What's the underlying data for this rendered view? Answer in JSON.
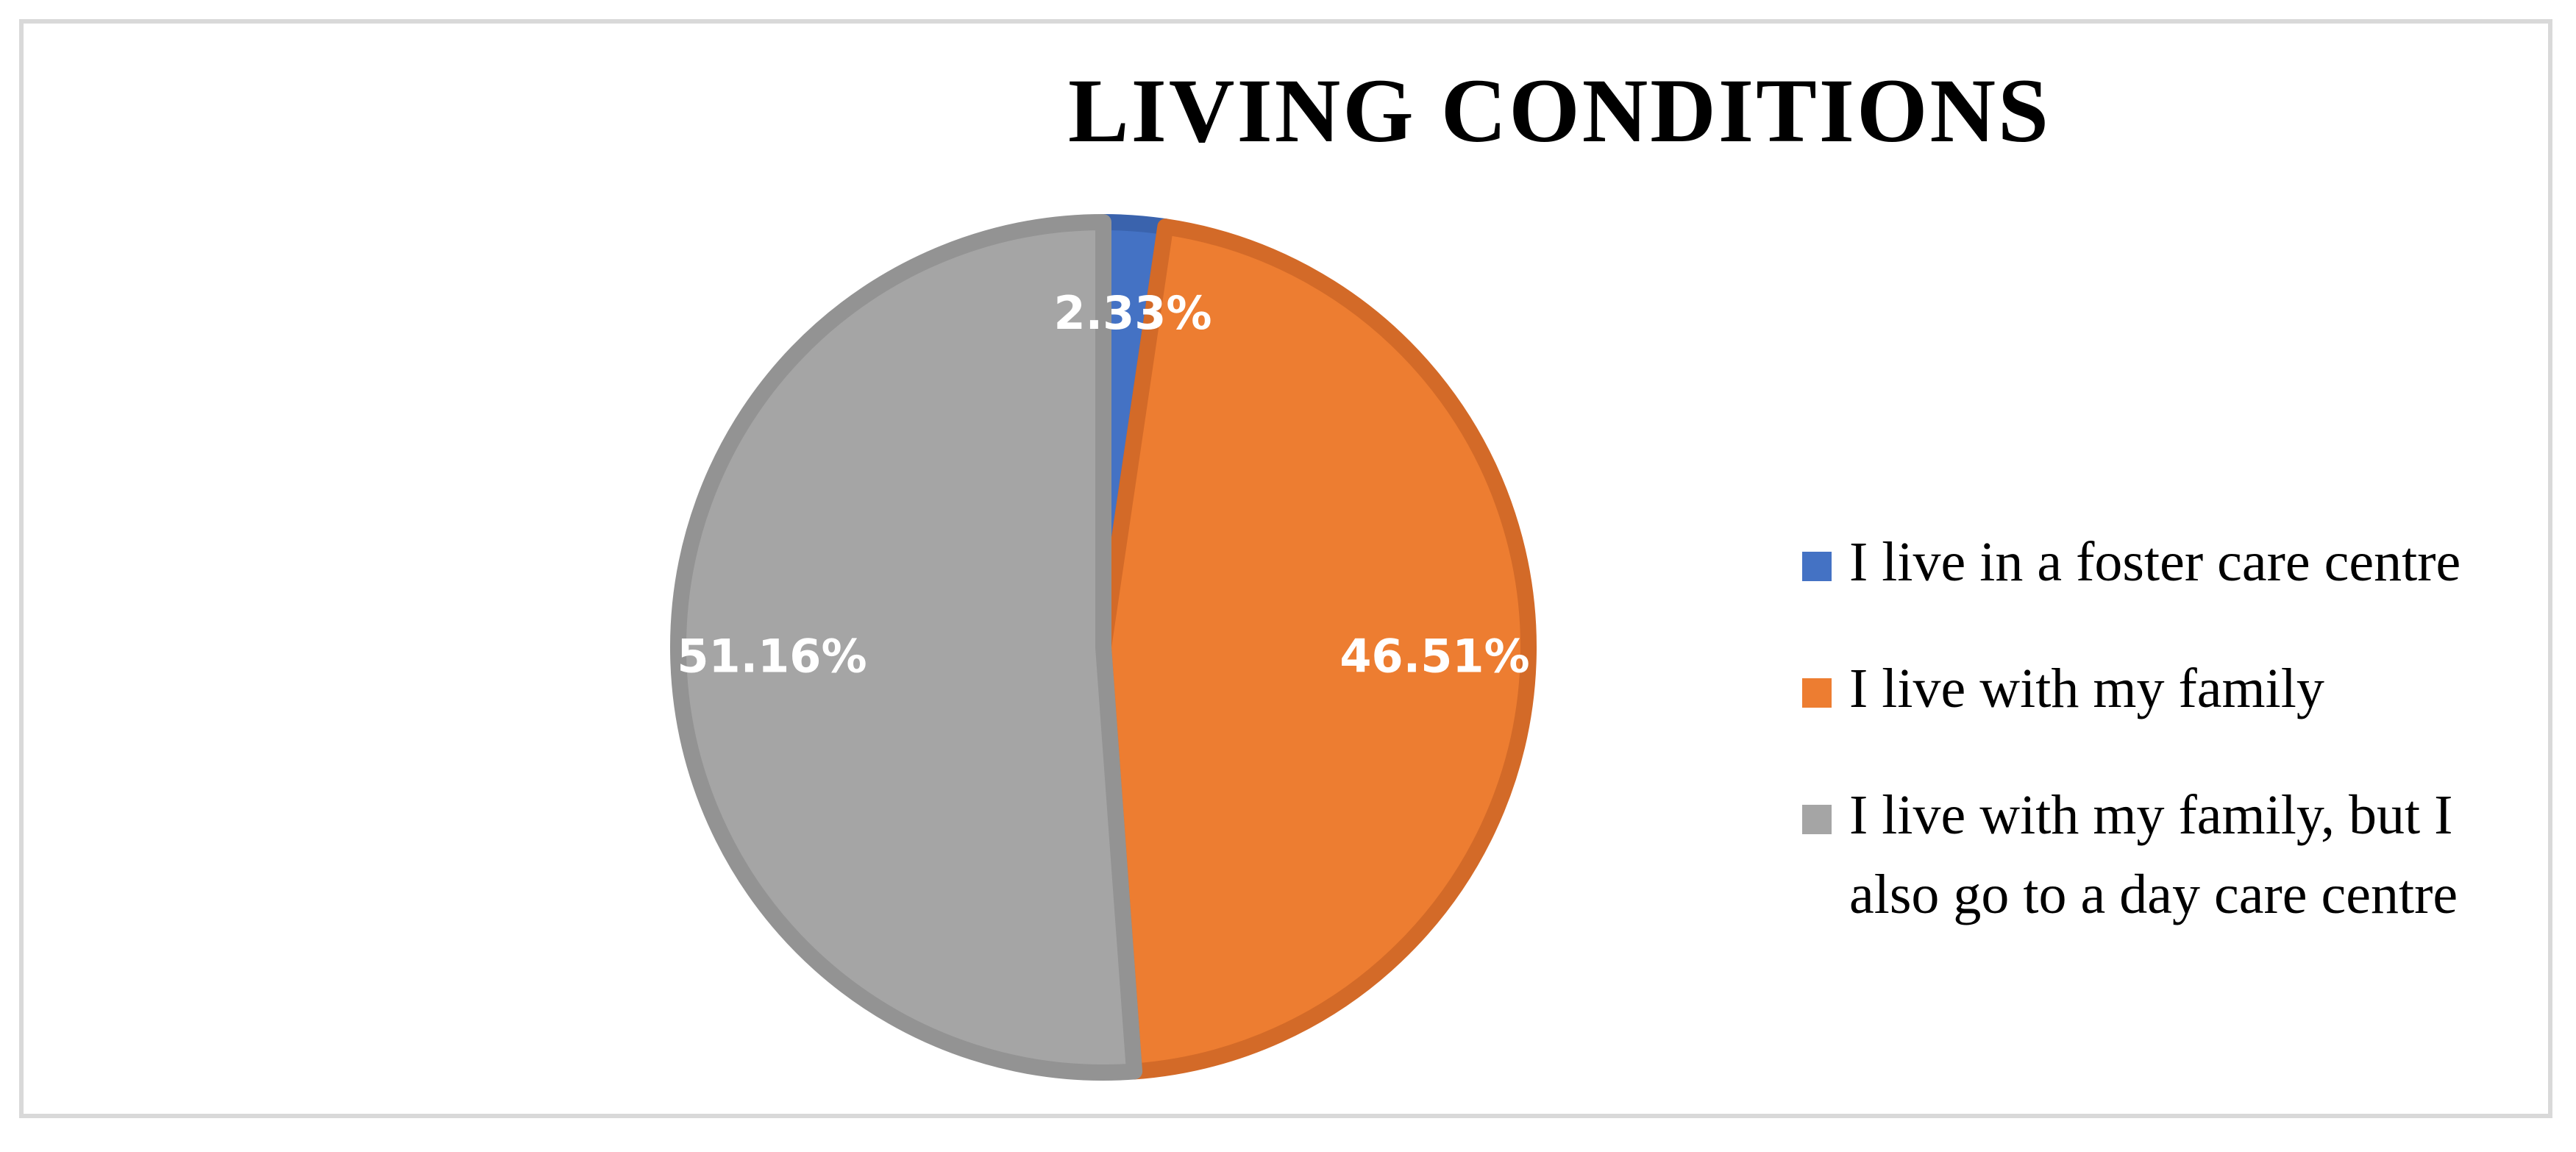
{
  "chart_data": {
    "type": "pie",
    "title": "LIVING CONDITIONS",
    "categories": [
      "I live in a foster care centre",
      "I live with my family",
      "I live with my family, but I also go to a day care centre"
    ],
    "values": [
      2.33,
      46.51,
      51.16
    ],
    "data_labels": [
      "2.33%",
      "46.51%",
      "51.16%"
    ],
    "colors": [
      "#4472c4",
      "#ed7d31",
      "#a5a5a5"
    ],
    "border_colors": [
      "#3a63ad",
      "#d36a28",
      "#939393"
    ],
    "legend_position": "right"
  }
}
